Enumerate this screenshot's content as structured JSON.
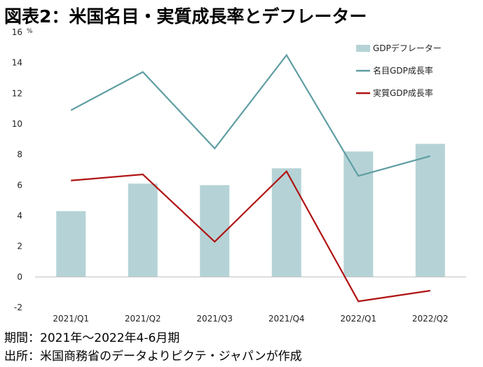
{
  "title": "図表2：米国名目・実質成長率とデフレーター",
  "footer": {
    "period": "期間：2021年～2022年4-6月期",
    "source": "出所：米国商務省のデータよりピクテ・ジャパンが作成"
  },
  "chart_data": {
    "type": "bar+line",
    "unit": "%",
    "categories": [
      "2021/Q1",
      "2021/Q2",
      "2021/Q3",
      "2021/Q4",
      "2022/Q1",
      "2022/Q2"
    ],
    "ylim": [
      -2,
      16
    ],
    "yticks": [
      -2,
      0,
      2,
      4,
      6,
      8,
      10,
      12,
      14,
      16
    ],
    "grid": false,
    "legend_position": "top-right",
    "series": [
      {
        "name": "GDPデフレーター",
        "kind": "bar",
        "color": "#b5d3d6",
        "values": [
          4.3,
          6.1,
          6.0,
          7.1,
          8.2,
          8.7
        ]
      },
      {
        "name": "名目GDP成長率",
        "kind": "line",
        "color": "#5f9ea3",
        "values": [
          10.9,
          13.4,
          8.4,
          14.5,
          6.6,
          7.9
        ]
      },
      {
        "name": "実質GDP成長率",
        "kind": "line",
        "color": "#b01313",
        "values": [
          6.3,
          6.7,
          2.3,
          6.9,
          -1.6,
          -0.9
        ]
      }
    ]
  }
}
